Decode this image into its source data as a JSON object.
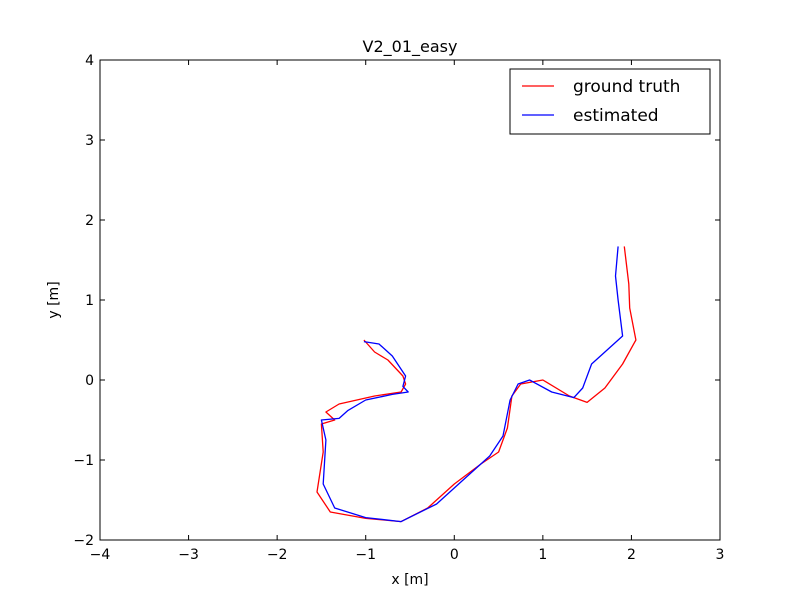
{
  "chart_data": {
    "type": "line",
    "title": "V2_01_easy",
    "xlabel": "x [m]",
    "ylabel": "y [m]",
    "xlim": [
      -4,
      3
    ],
    "ylim": [
      -2,
      4
    ],
    "xticks": [
      "−4",
      "−3",
      "−2",
      "−1",
      "0",
      "1",
      "2",
      "3"
    ],
    "yticks": [
      "−2",
      "−1",
      "0",
      "1",
      "2",
      "3",
      "4"
    ],
    "grid": false,
    "legend_position": "top-right",
    "series": [
      {
        "name": "ground truth",
        "color": "#ff0000",
        "points": [
          [
            1.92,
            1.67
          ],
          [
            1.97,
            1.2
          ],
          [
            1.98,
            0.9
          ],
          [
            2.05,
            0.5
          ],
          [
            1.9,
            0.2
          ],
          [
            1.7,
            -0.1
          ],
          [
            1.5,
            -0.28
          ],
          [
            1.3,
            -0.2
          ],
          [
            1.0,
            0.0
          ],
          [
            0.75,
            -0.05
          ],
          [
            0.65,
            -0.2
          ],
          [
            0.6,
            -0.6
          ],
          [
            0.5,
            -0.9
          ],
          [
            0.3,
            -1.05
          ],
          [
            0.0,
            -1.3
          ],
          [
            -0.3,
            -1.6
          ],
          [
            -0.6,
            -1.77
          ],
          [
            -1.0,
            -1.73
          ],
          [
            -1.4,
            -1.65
          ],
          [
            -1.55,
            -1.4
          ],
          [
            -1.48,
            -0.9
          ],
          [
            -1.5,
            -0.55
          ],
          [
            -1.35,
            -0.5
          ],
          [
            -1.45,
            -0.4
          ],
          [
            -1.3,
            -0.3
          ],
          [
            -0.9,
            -0.2
          ],
          [
            -0.6,
            -0.15
          ],
          [
            -0.55,
            -0.05
          ],
          [
            -0.58,
            0.05
          ],
          [
            -0.75,
            0.25
          ],
          [
            -0.9,
            0.35
          ],
          [
            -1.02,
            0.5
          ]
        ]
      },
      {
        "name": "estimated",
        "color": "#0000ff",
        "points": [
          [
            1.85,
            1.67
          ],
          [
            1.82,
            1.3
          ],
          [
            1.85,
            1.0
          ],
          [
            1.9,
            0.55
          ],
          [
            1.7,
            0.35
          ],
          [
            1.55,
            0.2
          ],
          [
            1.45,
            -0.1
          ],
          [
            1.35,
            -0.22
          ],
          [
            1.1,
            -0.15
          ],
          [
            0.85,
            0.0
          ],
          [
            0.72,
            -0.05
          ],
          [
            0.63,
            -0.25
          ],
          [
            0.55,
            -0.7
          ],
          [
            0.4,
            -0.95
          ],
          [
            0.1,
            -1.25
          ],
          [
            -0.2,
            -1.55
          ],
          [
            -0.6,
            -1.77
          ],
          [
            -1.0,
            -1.72
          ],
          [
            -1.35,
            -1.6
          ],
          [
            -1.48,
            -1.3
          ],
          [
            -1.45,
            -0.75
          ],
          [
            -1.5,
            -0.5
          ],
          [
            -1.3,
            -0.48
          ],
          [
            -1.2,
            -0.38
          ],
          [
            -1.0,
            -0.25
          ],
          [
            -0.7,
            -0.18
          ],
          [
            -0.52,
            -0.15
          ],
          [
            -0.58,
            -0.08
          ],
          [
            -0.55,
            0.05
          ],
          [
            -0.7,
            0.3
          ],
          [
            -0.85,
            0.45
          ],
          [
            -1.02,
            0.48
          ]
        ]
      }
    ]
  }
}
